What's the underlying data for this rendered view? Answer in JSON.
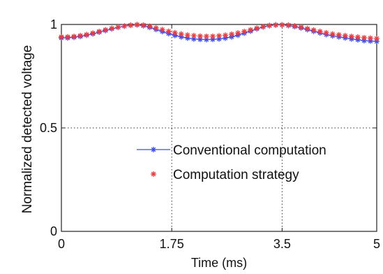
{
  "chart_data": {
    "type": "line",
    "xlabel": "Time (ms)",
    "ylabel": "Normalized detected voltage",
    "xlim": [
      0,
      5
    ],
    "ylim": [
      0,
      1
    ],
    "xticks": [
      0,
      1.75,
      3.5,
      5
    ],
    "xtick_labels": [
      "0",
      "1.75",
      "3.5",
      "5"
    ],
    "yticks": [
      0,
      0.5,
      1
    ],
    "ytick_labels": [
      "0",
      "0.5",
      "1"
    ],
    "grid": "dotted",
    "legend_position": "center-right",
    "series": [
      {
        "name": "Conventional computation",
        "color": "#3a4cf0",
        "style": "line-with-star-markers",
        "x": [
          0.0,
          0.1,
          0.2,
          0.3,
          0.4,
          0.5,
          0.6,
          0.7,
          0.8,
          0.9,
          1.0,
          1.1,
          1.2,
          1.3,
          1.4,
          1.5,
          1.6,
          1.7,
          1.8,
          1.9,
          2.0,
          2.1,
          2.2,
          2.3,
          2.4,
          2.5,
          2.6,
          2.7,
          2.8,
          2.9,
          3.0,
          3.1,
          3.2,
          3.3,
          3.4,
          3.5,
          3.6,
          3.7,
          3.8,
          3.9,
          4.0,
          4.1,
          4.2,
          4.3,
          4.4,
          4.5,
          4.6,
          4.7,
          4.8,
          4.9,
          5.0
        ],
        "y": [
          0.935,
          0.935,
          0.938,
          0.942,
          0.948,
          0.955,
          0.963,
          0.971,
          0.979,
          0.986,
          0.992,
          0.996,
          0.998,
          0.994,
          0.986,
          0.976,
          0.966,
          0.956,
          0.947,
          0.94,
          0.934,
          0.93,
          0.928,
          0.927,
          0.928,
          0.93,
          0.934,
          0.94,
          0.948,
          0.958,
          0.968,
          0.979,
          0.988,
          0.995,
          0.998,
          0.998,
          0.995,
          0.99,
          0.983,
          0.975,
          0.967,
          0.959,
          0.951,
          0.945,
          0.94,
          0.935,
          0.93,
          0.926,
          0.922,
          0.92,
          0.918
        ]
      },
      {
        "name": "Computation strategy",
        "color": "#f03a3a",
        "style": "star-markers",
        "x": [
          0.0,
          0.1,
          0.2,
          0.3,
          0.4,
          0.5,
          0.6,
          0.7,
          0.8,
          0.9,
          1.0,
          1.1,
          1.2,
          1.3,
          1.4,
          1.5,
          1.6,
          1.7,
          1.8,
          1.9,
          2.0,
          2.1,
          2.2,
          2.3,
          2.4,
          2.5,
          2.6,
          2.7,
          2.8,
          2.9,
          3.0,
          3.1,
          3.2,
          3.3,
          3.4,
          3.5,
          3.6,
          3.7,
          3.8,
          3.9,
          4.0,
          4.1,
          4.2,
          4.3,
          4.4,
          4.5,
          4.6,
          4.7,
          4.8,
          4.9,
          5.0
        ],
        "y": [
          0.94,
          0.94,
          0.942,
          0.946,
          0.951,
          0.958,
          0.966,
          0.974,
          0.981,
          0.987,
          0.992,
          0.996,
          0.999,
          0.997,
          0.991,
          0.983,
          0.975,
          0.967,
          0.96,
          0.954,
          0.949,
          0.946,
          0.944,
          0.943,
          0.943,
          0.945,
          0.948,
          0.953,
          0.959,
          0.966,
          0.974,
          0.982,
          0.989,
          0.994,
          0.997,
          0.998,
          0.997,
          0.993,
          0.987,
          0.98,
          0.973,
          0.966,
          0.96,
          0.954,
          0.95,
          0.946,
          0.942,
          0.939,
          0.936,
          0.934,
          0.932
        ]
      }
    ]
  }
}
